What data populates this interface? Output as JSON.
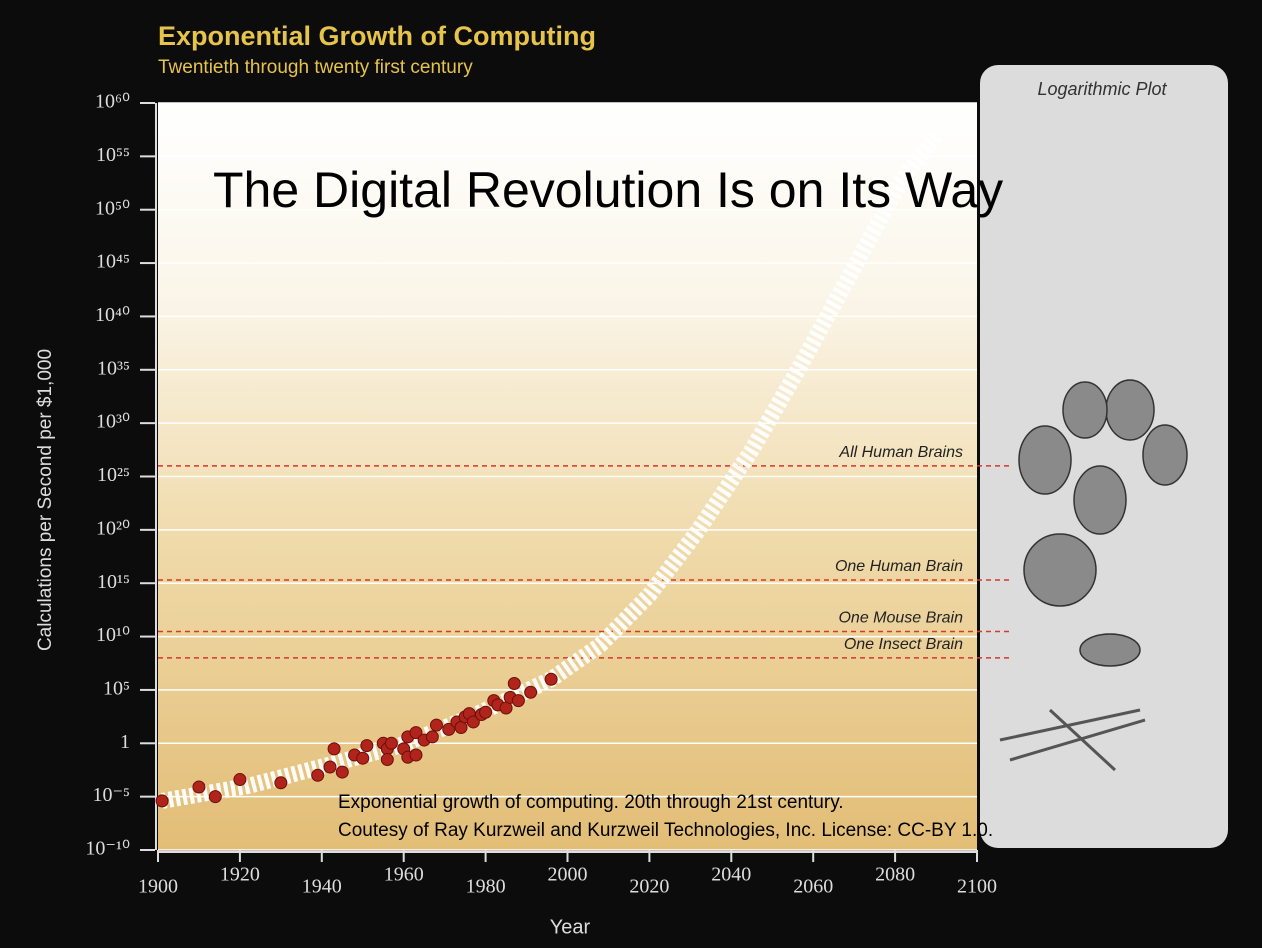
{
  "chart_data": {
    "type": "scatter",
    "title": "Exponential Growth of Computing",
    "subtitle": "Twentieth through twenty first century",
    "overlay_title": "The Digital Revolution Is on Its Way",
    "panel_title": "Logarithmic Plot",
    "caption": [
      "Exponential growth of computing. 20th through 21st century.",
      "Coutesy of Ray Kurzweil and Kurzweil Technologies, Inc. License: CC-BY 1.0."
    ],
    "x_label": "Year",
    "y_label": "Calculations per Second per $1,000",
    "yscale": "log",
    "grid": true,
    "color": "#b0241c",
    "x": [
      1901,
      1910,
      1914,
      1920,
      1930,
      1939,
      1942,
      1943,
      1945,
      1948,
      1950,
      1951,
      1955,
      1956,
      1956,
      1957,
      1960,
      1961,
      1961,
      1963,
      1963,
      1965,
      1967,
      1968,
      1971,
      1973,
      1974,
      1975,
      1976,
      1977,
      1979,
      1980,
      1982,
      1983,
      1985,
      1986,
      1987,
      1988,
      1991,
      1996
    ],
    "values": [
      4e-06,
      8e-05,
      1e-05,
      0.0004,
      0.0002,
      0.001,
      0.006,
      0.3,
      0.002,
      0.08,
      0.04,
      0.6,
      1,
      0.3,
      0.03,
      1,
      0.3,
      4,
      0.05,
      10,
      0.08,
      2,
      4,
      50,
      20,
      100,
      30,
      300,
      600,
      100,
      500,
      800,
      10000,
      4000,
      2000,
      20000,
      400000,
      10000,
      60000,
      1000000
    ],
    "trend": {
      "x": [
        1901,
        1922,
        1942,
        1959,
        1976,
        1996,
        2008,
        2020,
        2032,
        2045,
        2057,
        2069,
        2081,
        2090
      ],
      "values": [
        4e-06,
        0.0001,
        0.01,
        0.6,
        250,
        1000000,
        1600000000.0,
        80000000000000.0,
        1e+20,
        3e+27,
        3e+35,
        8e+43,
        2.5e+52,
        1e+57
      ],
      "color": "#ffffff"
    },
    "reference_lines": [
      {
        "label": "All Human Brains",
        "value": 1e+26,
        "color": "#d23a2a"
      },
      {
        "label": "One Human Brain",
        "value": 2000000000000000.0,
        "color": "#d23a2a"
      },
      {
        "label": "One Mouse Brain",
        "value": 30000000000.0,
        "color": "#d23a2a"
      },
      {
        "label": "One Insect Brain",
        "value": 100000000.0,
        "color": "#d23a2a"
      }
    ],
    "xlim": [
      1900,
      2100
    ],
    "xticks": [
      1900,
      1920,
      1940,
      1960,
      1980,
      2000,
      2020,
      2040,
      2060,
      2080,
      2100
    ],
    "ylim": [
      1e-10,
      1e+60
    ],
    "yticks": [
      {
        "value": 1e-10,
        "label": "10⁻¹⁰"
      },
      {
        "value": 1e-05,
        "label": "10⁻⁵"
      },
      1,
      {
        "value": 100000.0,
        "label": "10⁵"
      },
      {
        "value": 10000000000.0,
        "label": "10¹⁰"
      },
      {
        "value": 1000000000000000.0,
        "label": "10¹⁵"
      },
      {
        "value": 1e+20,
        "label": "10²⁰"
      },
      {
        "value": 1e+25,
        "label": "10²⁵"
      },
      {
        "value": 1e+30,
        "label": "10³⁰"
      },
      {
        "value": 1e+35,
        "label": "10³⁵"
      },
      {
        "value": 1e+40,
        "label": "10⁴⁰"
      },
      {
        "value": 1e+45,
        "label": "10⁴⁵"
      },
      {
        "value": 1e+50,
        "label": "10⁵⁰"
      },
      {
        "value": 1e+55,
        "label": "10⁵⁵"
      },
      {
        "value": 1e+60,
        "label": "10⁶⁰"
      }
    ]
  }
}
